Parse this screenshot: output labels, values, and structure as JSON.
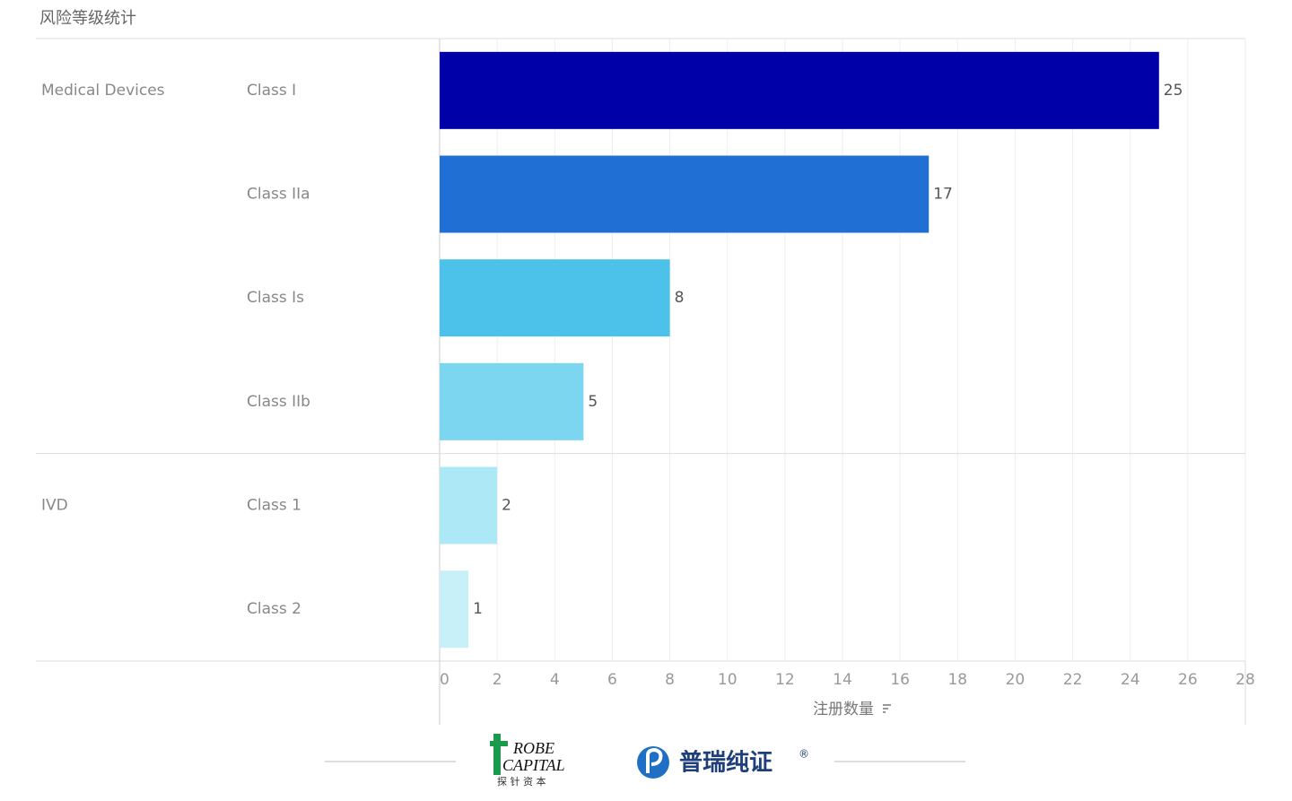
{
  "chart_data": {
    "type": "bar",
    "orientation": "horizontal",
    "title": "风险等级统计",
    "groups": [
      {
        "name": "Medical Devices",
        "categories": [
          "Class I",
          "Class IIa",
          "Class Is",
          "Class IIb"
        ],
        "values": [
          25,
          17,
          8,
          5
        ],
        "colors": [
          "#0000a8",
          "#1f6fd4",
          "#4cc1ea",
          "#7dd6f0"
        ]
      },
      {
        "name": "IVD",
        "categories": [
          "Class 1",
          "Class 2"
        ],
        "values": [
          2,
          1
        ],
        "colors": [
          "#ace8f5",
          "#c8f0f8"
        ]
      }
    ],
    "xlabel": "注册数量",
    "xlim": [
      0,
      28
    ],
    "xticks": [
      0,
      2,
      4,
      6,
      8,
      10,
      12,
      14,
      16,
      18,
      20,
      22,
      24,
      26,
      28
    ],
    "grid": true
  },
  "footer": {
    "logo1_line1": "ROBE",
    "logo1_line2": "CAPITAL",
    "logo1_cn": "探 针 资 本",
    "logo2": "普瑞纯证",
    "logo2_mark": "®"
  }
}
